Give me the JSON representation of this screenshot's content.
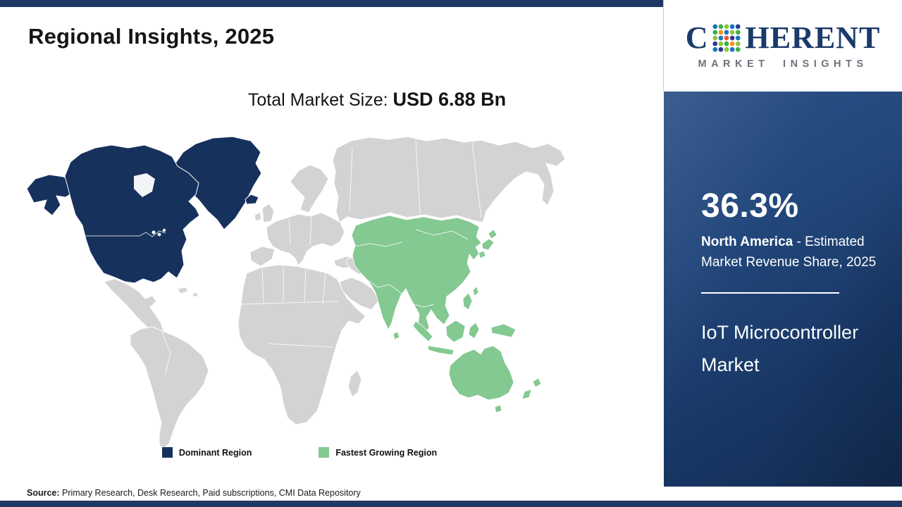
{
  "header": {
    "title": "Regional Insights, 2025",
    "subtitle_label": "Total Market Size:",
    "subtitle_value": "USD 6.88 Bn"
  },
  "logo": {
    "brand_c": "C",
    "brand_rest": "HERENT",
    "tagline": "MARKET INSIGHTS",
    "dot_colors": [
      "#1b75bb",
      "#3fae49",
      "#8cc63f",
      "#1b75bb",
      "#2b3990",
      "#3fae49",
      "#f7941d",
      "#1b75bb",
      "#8cc63f",
      "#3fae49",
      "#8cc63f",
      "#1b75bb",
      "#f15a29",
      "#2b3990",
      "#1b75bb",
      "#2b3990",
      "#8cc63f",
      "#3fae49",
      "#f7941d",
      "#8cc63f",
      "#1b75bb",
      "#2b3990",
      "#8cc63f",
      "#1b75bb",
      "#3fae49"
    ]
  },
  "legend": {
    "items": [
      {
        "label": "Dominant Region",
        "color": "#16315c"
      },
      {
        "label": "Fastest Growing Region",
        "color": "#84c892"
      }
    ]
  },
  "sidebar": {
    "share_value": "36.3%",
    "share_region": "North America",
    "share_desc_rest": " - Estimated Market Revenue Share, 2025",
    "market_name": "IoT Microcontroller Market"
  },
  "footer": {
    "source_label": "Source:",
    "source_text": " Primary Research, Desk Research, Paid subscriptions, CMI Data Repository"
  },
  "colors": {
    "brand_navy": "#1f3864",
    "dominant_region": "#16315c",
    "fastest_growing_region": "#84c892",
    "other_land": "#d3d3d3"
  },
  "chart_data": {
    "type": "choropleth-map",
    "title": "Regional Insights, 2025",
    "total_market_size_label": "Total Market Size:",
    "total_market_size_value": "USD 6.88 Bn",
    "land_color": "#d3d3d3",
    "legend_position": "bottom-center",
    "regions": [
      {
        "name": "North America",
        "role": "Dominant Region",
        "revenue_share_2025_pct": 36.3,
        "color": "#16315c"
      },
      {
        "name": "Asia Pacific",
        "role": "Fastest Growing Region",
        "color": "#84c892"
      }
    ],
    "market": "IoT Microcontroller Market"
  }
}
